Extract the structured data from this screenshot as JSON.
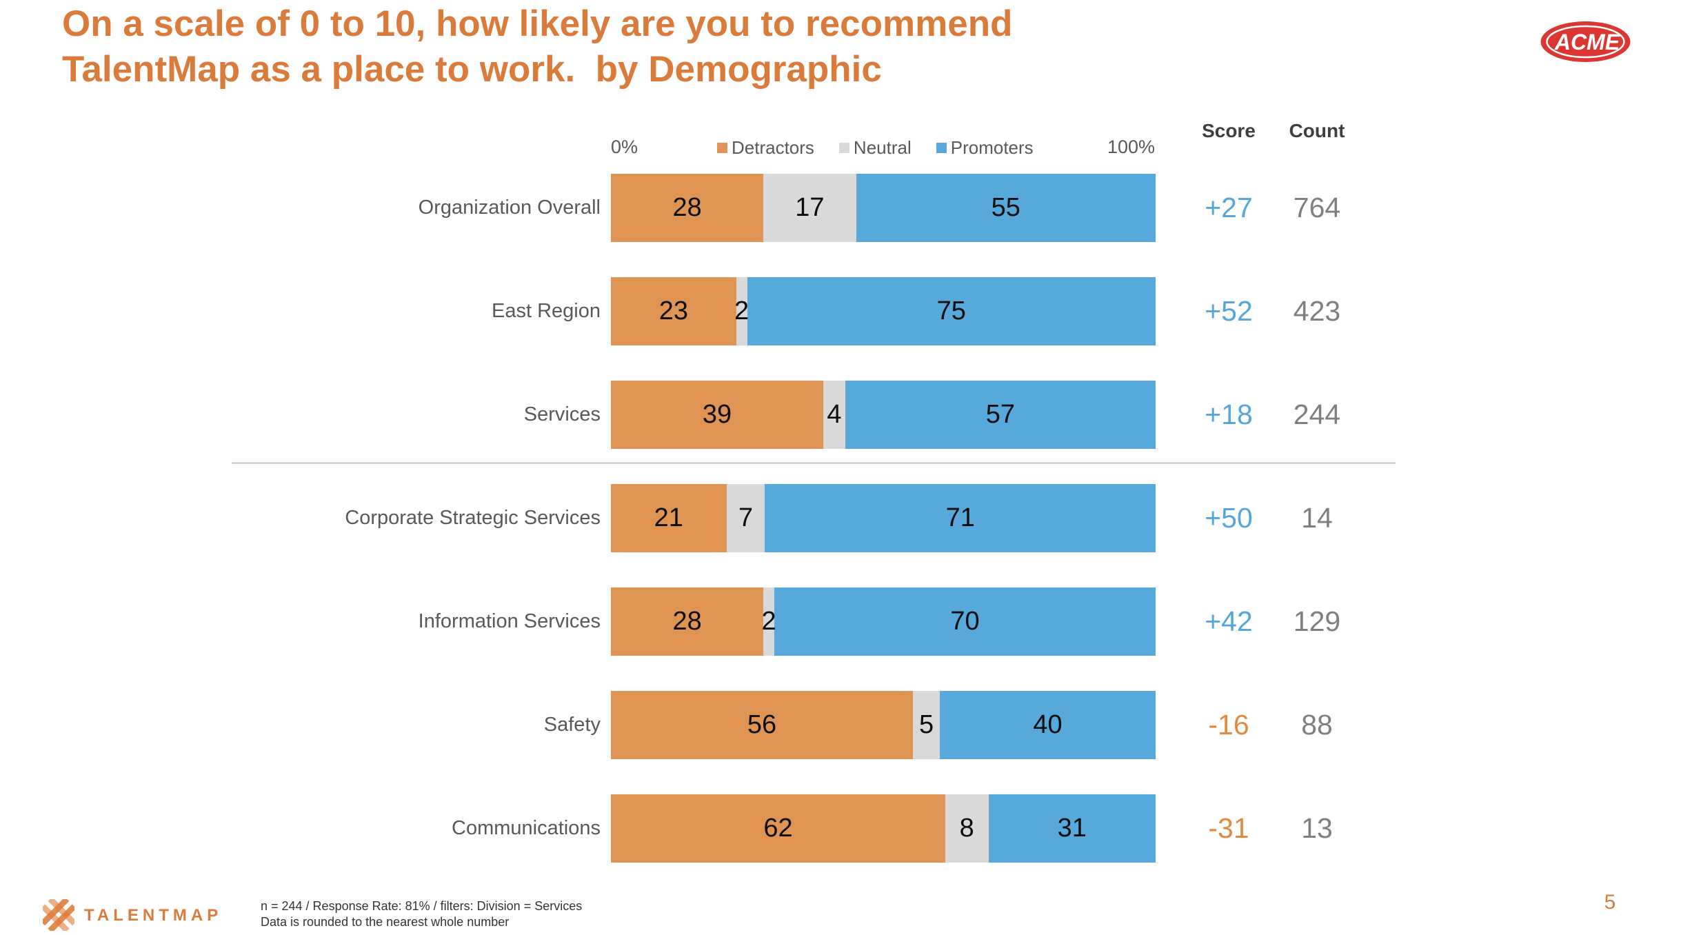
{
  "header": {
    "title_line1": "On a scale of 0 to 10, how likely are you to recommend",
    "title_line2": "TalentMap as a place to work.  by Demographic"
  },
  "brand": {
    "acme": "ACME",
    "talentmap": "TALENTMAP"
  },
  "columns": {
    "score": "Score",
    "count": "Count"
  },
  "colors": {
    "title_orange": "#DB7B3B",
    "series": [
      "#E09453",
      "#D9D9D9",
      "#57A9DC"
    ],
    "score_positive": "#56A6DA",
    "score_negative": "#E18A3E",
    "count_gray": "#7F7F7F",
    "label_gray": "#595959",
    "acme_red": "#DB3632",
    "divider_gray": "#D3D3D3"
  },
  "chart_data": {
    "type": "bar",
    "stacked": true,
    "orientation": "horizontal",
    "xlim": [
      0,
      100
    ],
    "x_tick_labels": [
      "0%",
      "100%"
    ],
    "legend_position": "top",
    "grid": false,
    "categories": [
      "Organization Overall",
      "East Region",
      "Services",
      "Corporate Strategic Services",
      "Information Services",
      "Safety",
      "Communications"
    ],
    "series": [
      {
        "name": "Detractors",
        "values": [
          28,
          23,
          39,
          21,
          28,
          56,
          62
        ]
      },
      {
        "name": "Neutral",
        "values": [
          17,
          2,
          4,
          7,
          2,
          5,
          8
        ]
      },
      {
        "name": "Promoters",
        "values": [
          55,
          75,
          57,
          71,
          70,
          40,
          31
        ]
      }
    ],
    "scores": [
      "+27",
      "+52",
      "+18",
      "+50",
      "+42",
      "-16",
      "-31"
    ],
    "counts": [
      764,
      423,
      244,
      14,
      129,
      88,
      13
    ],
    "divider_after_row": "Services"
  },
  "footer": {
    "note_line1": "n = 244 / Response Rate: 81% / filters: Division = Services",
    "note_line2": "Data is rounded to the nearest whole number",
    "page_number": "5"
  }
}
